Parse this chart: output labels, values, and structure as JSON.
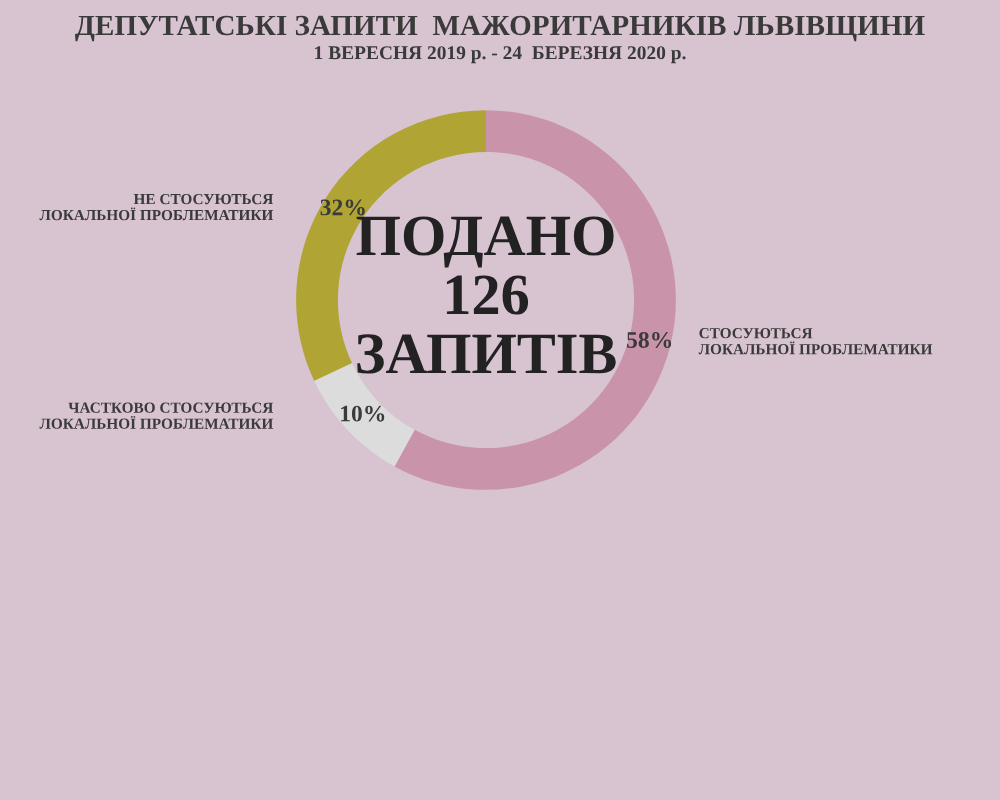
{
  "chart_data": {
    "type": "donut",
    "title": "ДЕПУТАТСЬКІ ЗАПИТИ  МАЖОРИТАРНИКІВ ЛЬВІВЩИНИ",
    "subtitle": "1 ВЕРЕСНЯ 2019 р. - 24  БЕРЕЗНЯ 2020 р.",
    "categories": [
      "СТОСУЮТЬСЯ\nЛОКАЛЬНОЇ ПРОБЛЕМАТИКИ",
      "ЧАСТКОВО СТОСУЮТЬСЯ\nЛОКАЛЬНОЇ ПРОБЛЕМАТИКИ",
      "НЕ СТОСУЮТЬСЯ\nЛОКАЛЬНОЇ ПРОБЛЕМАТИКИ"
    ],
    "values": [
      58,
      10,
      32
    ],
    "value_labels": [
      "58%",
      "10%",
      "32%"
    ],
    "colors": [
      "#c994aa",
      "#dddcdc",
      "#afa434"
    ],
    "annotations": [
      "ПОДАНО\n126\nЗАПИТІВ"
    ],
    "legend": false
  }
}
